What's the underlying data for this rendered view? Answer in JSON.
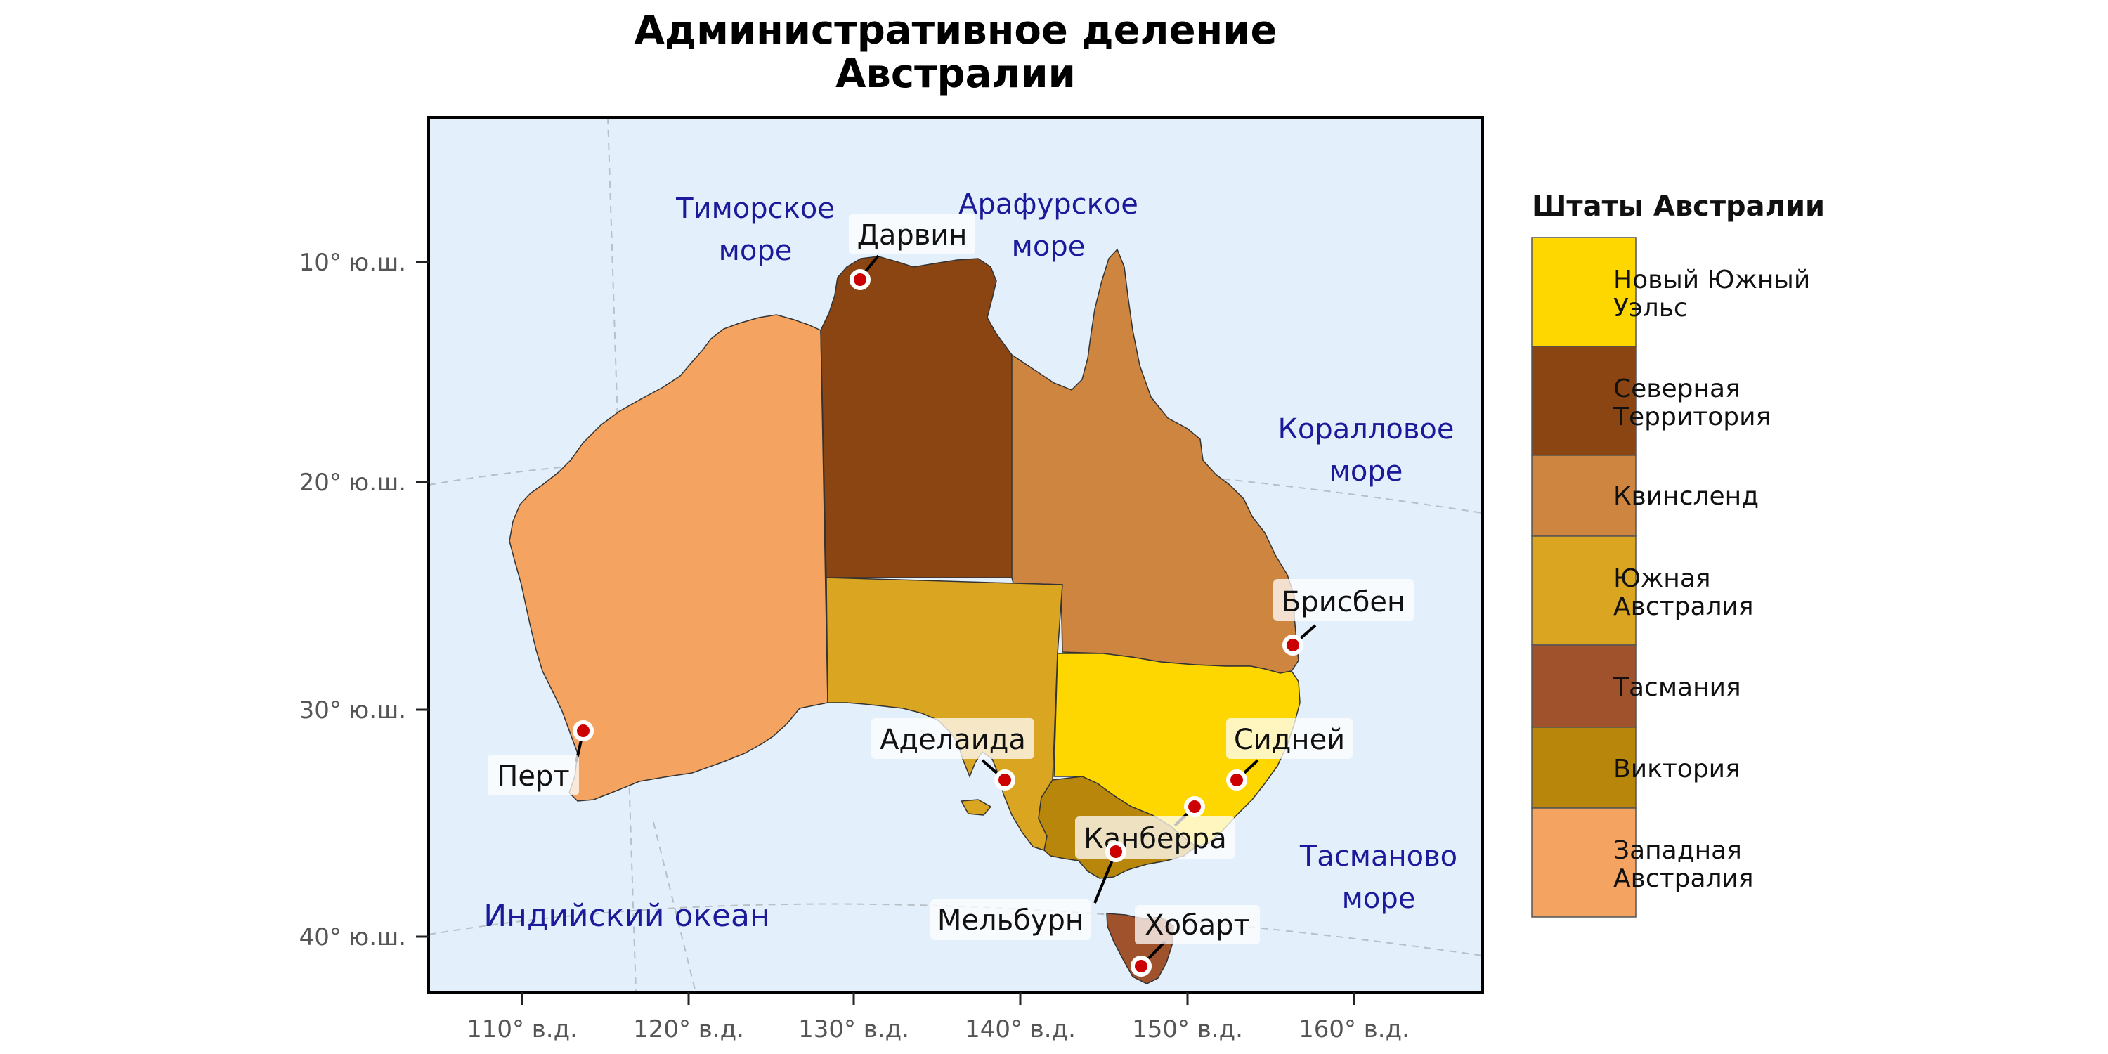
{
  "title": {
    "line1": "Административное деление",
    "line2": "Австралии"
  },
  "axes": {
    "y_ticks": [
      "10° ю.ш.",
      "20° ю.ш.",
      "30° ю.ш.",
      "40° ю.ш."
    ],
    "x_ticks": [
      "110° в.д.",
      "120° в.д.",
      "130° в.д.",
      "140° в.д.",
      "150° в.д.",
      "160° в.д."
    ]
  },
  "water": {
    "timor_1": "Тиморское",
    "timor_2": "море",
    "arafura_1": "Арафурское",
    "arafura_2": "море",
    "coral_1": "Коралловое",
    "coral_2": "море",
    "tasman_1": "Тасманово",
    "tasman_2": "море",
    "indian": "Индийский океан"
  },
  "cities": {
    "darwin": "Дарвин",
    "brisbane": "Брисбен",
    "sydney": "Сидней",
    "canberra": "Канберра",
    "melbourne": "Мельбурн",
    "hobart": "Хобарт",
    "adelaide": "Аделаида",
    "perth": "Перт"
  },
  "legend": {
    "title": "Штаты Австралии",
    "items": [
      {
        "line1": "Новый Южный",
        "line2": "Уэльс",
        "color": "#FFD700"
      },
      {
        "line1": "Северная",
        "line2": "Территория",
        "color": "#8B4513"
      },
      {
        "line1": "Квинсленд",
        "line2": "",
        "color": "#CD853F"
      },
      {
        "line1": "Южная",
        "line2": "Австралия",
        "color": "#DAA520"
      },
      {
        "line1": "Тасмания",
        "line2": "",
        "color": "#A0522D"
      },
      {
        "line1": "Виктория",
        "line2": "",
        "color": "#B8860B"
      },
      {
        "line1": "Западная",
        "line2": "Австралия",
        "color": "#F4A460"
      }
    ]
  },
  "colors": {
    "ocean": "#E3F0FC",
    "city_dot": "#CC0000",
    "water_label": "#1a1a9a"
  }
}
